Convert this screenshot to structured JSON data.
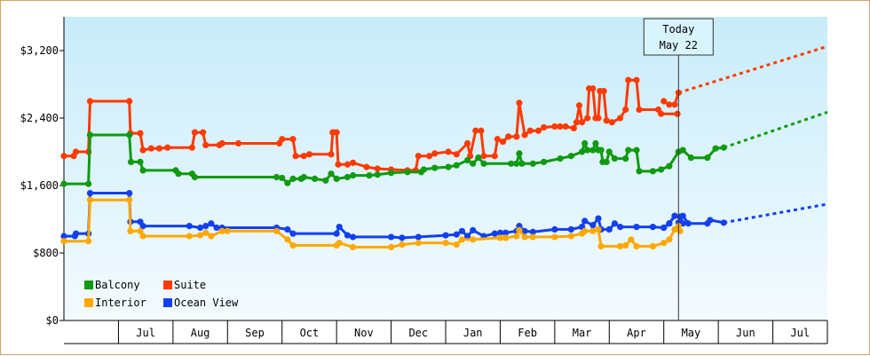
{
  "chart_data": {
    "type": "line",
    "title": "",
    "xlabel": "",
    "ylabel": "",
    "y_axis": {
      "min": 0,
      "max": 3600,
      "ticks": [
        0,
        800,
        1600,
        2400,
        3200
      ],
      "tick_labels": [
        "$0",
        "$800",
        "$1,600",
        "$2,400",
        "$3,200"
      ]
    },
    "x_axis": {
      "min": 0,
      "max": 14,
      "ticks": [
        1,
        2,
        3,
        4,
        5,
        6,
        7,
        8,
        9,
        10,
        11,
        12,
        13,
        14
      ],
      "month_labels": [
        "Jul",
        "Aug",
        "Sep",
        "Oct",
        "Nov",
        "Dec",
        "Jan",
        "Feb",
        "Mar",
        "Apr",
        "May",
        "Jun",
        "Jul"
      ]
    },
    "today": {
      "x": 11.27,
      "line1": "Today",
      "line2": "May 22"
    },
    "colors": {
      "Balcony": "#109a10",
      "Suite": "#ff3a00",
      "Interior": "#ffa800",
      "Ocean View": "#1240f0"
    },
    "legend": [
      "Balcony",
      "Suite",
      "Interior",
      "Ocean View"
    ],
    "series": [
      {
        "name": "Suite",
        "points": [
          [
            0.0,
            1950
          ],
          [
            0.18,
            1950
          ],
          [
            0.22,
            2000
          ],
          [
            0.45,
            2000
          ],
          [
            0.48,
            2600
          ],
          [
            1.2,
            2600
          ],
          [
            1.22,
            2220
          ],
          [
            1.4,
            2220
          ],
          [
            1.45,
            2020
          ],
          [
            1.6,
            2040
          ],
          [
            1.75,
            2040
          ],
          [
            1.9,
            2050
          ],
          [
            2.35,
            2050
          ],
          [
            2.4,
            2230
          ],
          [
            2.55,
            2230
          ],
          [
            2.6,
            2080
          ],
          [
            2.85,
            2080
          ],
          [
            2.9,
            2100
          ],
          [
            3.2,
            2100
          ],
          [
            3.95,
            2100
          ],
          [
            4.0,
            2150
          ],
          [
            4.2,
            2150
          ],
          [
            4.25,
            1950
          ],
          [
            4.4,
            1950
          ],
          [
            4.5,
            1970
          ],
          [
            4.9,
            1970
          ],
          [
            4.93,
            2230
          ],
          [
            5.0,
            2230
          ],
          [
            5.03,
            1850
          ],
          [
            5.2,
            1850
          ],
          [
            5.3,
            1870
          ],
          [
            5.55,
            1820
          ],
          [
            5.75,
            1800
          ],
          [
            6.0,
            1790
          ],
          [
            6.3,
            1780
          ],
          [
            6.45,
            1780
          ],
          [
            6.5,
            1950
          ],
          [
            6.7,
            1950
          ],
          [
            6.8,
            1980
          ],
          [
            7.05,
            2000
          ],
          [
            7.2,
            1970
          ],
          [
            7.4,
            2100
          ],
          [
            7.45,
            1950
          ],
          [
            7.55,
            2250
          ],
          [
            7.65,
            2250
          ],
          [
            7.7,
            1950
          ],
          [
            7.9,
            1950
          ],
          [
            7.95,
            2150
          ],
          [
            8.05,
            2120
          ],
          [
            8.15,
            2180
          ],
          [
            8.3,
            2180
          ],
          [
            8.35,
            2580
          ],
          [
            8.45,
            2200
          ],
          [
            8.55,
            2250
          ],
          [
            8.7,
            2250
          ],
          [
            8.8,
            2290
          ],
          [
            9.0,
            2300
          ],
          [
            9.1,
            2300
          ],
          [
            9.2,
            2300
          ],
          [
            9.35,
            2280
          ],
          [
            9.4,
            2350
          ],
          [
            9.45,
            2550
          ],
          [
            9.5,
            2350
          ],
          [
            9.6,
            2400
          ],
          [
            9.63,
            2750
          ],
          [
            9.7,
            2750
          ],
          [
            9.75,
            2400
          ],
          [
            9.8,
            2400
          ],
          [
            9.83,
            2720
          ],
          [
            9.9,
            2720
          ],
          [
            9.95,
            2370
          ],
          [
            10.05,
            2350
          ],
          [
            10.2,
            2400
          ],
          [
            10.3,
            2500
          ],
          [
            10.35,
            2850
          ],
          [
            10.5,
            2850
          ],
          [
            10.55,
            2500
          ],
          [
            10.9,
            2500
          ],
          [
            10.95,
            2450
          ],
          [
            11.25,
            2450
          ]
        ],
        "gaps_after": [
          79
        ],
        "tail": [
          [
            11.0,
            2600
          ],
          [
            11.1,
            2560
          ],
          [
            11.2,
            2560
          ],
          [
            11.27,
            2700
          ]
        ],
        "projection": [
          [
            11.27,
            2700
          ],
          [
            14.0,
            3250
          ]
        ]
      },
      {
        "name": "Balcony",
        "points": [
          [
            0.0,
            1620
          ],
          [
            0.45,
            1620
          ],
          [
            0.48,
            2200
          ],
          [
            1.2,
            2200
          ],
          [
            1.23,
            1880
          ],
          [
            1.4,
            1880
          ],
          [
            1.45,
            1780
          ],
          [
            2.05,
            1780
          ],
          [
            2.1,
            1740
          ],
          [
            2.35,
            1740
          ],
          [
            2.4,
            1700
          ],
          [
            3.9,
            1700
          ],
          [
            4.0,
            1690
          ],
          [
            4.1,
            1630
          ],
          [
            4.2,
            1680
          ],
          [
            4.35,
            1680
          ],
          [
            4.4,
            1700
          ],
          [
            4.6,
            1680
          ],
          [
            4.8,
            1660
          ],
          [
            4.9,
            1740
          ],
          [
            5.0,
            1680
          ],
          [
            5.2,
            1700
          ],
          [
            5.3,
            1720
          ],
          [
            5.6,
            1720
          ],
          [
            5.75,
            1730
          ],
          [
            6.0,
            1750
          ],
          [
            6.3,
            1760
          ],
          [
            6.55,
            1760
          ],
          [
            6.6,
            1790
          ],
          [
            6.8,
            1810
          ],
          [
            7.05,
            1820
          ],
          [
            7.2,
            1840
          ],
          [
            7.4,
            1900
          ],
          [
            7.5,
            1860
          ],
          [
            7.6,
            1930
          ],
          [
            7.7,
            1860
          ],
          [
            8.2,
            1860
          ],
          [
            8.3,
            1860
          ],
          [
            8.35,
            1980
          ],
          [
            8.4,
            1860
          ],
          [
            8.6,
            1860
          ],
          [
            8.8,
            1880
          ],
          [
            9.1,
            1920
          ],
          [
            9.3,
            1950
          ],
          [
            9.5,
            2000
          ],
          [
            9.55,
            2100
          ],
          [
            9.6,
            2020
          ],
          [
            9.7,
            2020
          ],
          [
            9.75,
            2100
          ],
          [
            9.8,
            2020
          ],
          [
            9.85,
            2020
          ],
          [
            9.88,
            1880
          ],
          [
            9.95,
            1880
          ],
          [
            10.0,
            2000
          ],
          [
            10.1,
            1920
          ],
          [
            10.3,
            1920
          ],
          [
            10.35,
            2020
          ],
          [
            10.5,
            2020
          ],
          [
            10.55,
            1770
          ],
          [
            10.8,
            1770
          ],
          [
            10.95,
            1790
          ],
          [
            11.1,
            1830
          ],
          [
            11.27,
            2000
          ]
        ],
        "gaps_after": [],
        "tail": [
          [
            11.27,
            2000
          ],
          [
            11.35,
            2020
          ],
          [
            11.5,
            1930
          ],
          [
            11.8,
            1930
          ],
          [
            11.95,
            2040
          ],
          [
            12.1,
            2050
          ]
        ],
        "projection": [
          [
            12.1,
            2050
          ],
          [
            14.0,
            2470
          ]
        ]
      },
      {
        "name": "Ocean View",
        "points": [
          [
            0.0,
            1000
          ],
          [
            0.2,
            1000
          ],
          [
            0.22,
            1030
          ],
          [
            0.45,
            1030
          ],
          [
            0.48,
            1510
          ],
          [
            1.2,
            1510
          ],
          [
            1.22,
            1170
          ],
          [
            1.4,
            1170
          ],
          [
            1.45,
            1120
          ],
          [
            2.3,
            1120
          ],
          [
            2.5,
            1100
          ],
          [
            2.6,
            1120
          ],
          [
            2.7,
            1150
          ],
          [
            2.8,
            1100
          ],
          [
            2.9,
            1100
          ],
          [
            3.9,
            1100
          ],
          [
            4.1,
            1080
          ],
          [
            4.2,
            1030
          ],
          [
            5.0,
            1030
          ],
          [
            5.05,
            1110
          ],
          [
            5.2,
            1010
          ],
          [
            5.3,
            990
          ],
          [
            6.0,
            990
          ],
          [
            6.2,
            980
          ],
          [
            6.5,
            990
          ],
          [
            7.0,
            1010
          ],
          [
            7.2,
            1020
          ],
          [
            7.3,
            1060
          ],
          [
            7.4,
            1000
          ],
          [
            7.5,
            1070
          ],
          [
            7.7,
            1000
          ],
          [
            7.9,
            1030
          ],
          [
            8.0,
            1040
          ],
          [
            8.1,
            1040
          ],
          [
            8.3,
            1060
          ],
          [
            8.35,
            1120
          ],
          [
            8.45,
            1060
          ],
          [
            8.6,
            1050
          ],
          [
            9.0,
            1080
          ],
          [
            9.3,
            1080
          ],
          [
            9.5,
            1110
          ],
          [
            9.55,
            1180
          ],
          [
            9.7,
            1130
          ],
          [
            9.8,
            1210
          ],
          [
            9.85,
            1080
          ],
          [
            10.0,
            1080
          ],
          [
            10.1,
            1150
          ],
          [
            10.2,
            1110
          ],
          [
            10.5,
            1110
          ],
          [
            10.8,
            1110
          ],
          [
            11.0,
            1100
          ],
          [
            11.1,
            1150
          ],
          [
            11.2,
            1240
          ],
          [
            11.3,
            1230
          ],
          [
            11.35,
            1150
          ],
          [
            11.27,
            1160
          ]
        ],
        "gaps_after": [],
        "tail": [
          [
            11.0,
            1100
          ],
          [
            11.1,
            1150
          ],
          [
            11.2,
            1240
          ],
          [
            11.35,
            1240
          ],
          [
            11.45,
            1150
          ],
          [
            11.8,
            1150
          ],
          [
            11.85,
            1190
          ],
          [
            12.1,
            1160
          ]
        ],
        "projection": [
          [
            12.1,
            1160
          ],
          [
            14.0,
            1380
          ]
        ]
      },
      {
        "name": "Interior",
        "points": [
          [
            0.0,
            940
          ],
          [
            0.45,
            940
          ],
          [
            0.48,
            1430
          ],
          [
            1.2,
            1430
          ],
          [
            1.22,
            1060
          ],
          [
            1.4,
            1060
          ],
          [
            1.45,
            1000
          ],
          [
            2.3,
            1000
          ],
          [
            2.5,
            1010
          ],
          [
            2.6,
            1040
          ],
          [
            2.7,
            1000
          ],
          [
            2.9,
            1060
          ],
          [
            3.0,
            1060
          ],
          [
            3.9,
            1060
          ],
          [
            4.1,
            960
          ],
          [
            4.2,
            890
          ],
          [
            5.0,
            890
          ],
          [
            5.05,
            920
          ],
          [
            5.3,
            870
          ],
          [
            6.0,
            870
          ],
          [
            6.2,
            900
          ],
          [
            6.5,
            920
          ],
          [
            7.0,
            920
          ],
          [
            7.2,
            900
          ],
          [
            7.3,
            960
          ],
          [
            7.5,
            960
          ],
          [
            8.0,
            980
          ],
          [
            8.1,
            980
          ],
          [
            8.3,
            1000
          ],
          [
            8.35,
            1070
          ],
          [
            8.45,
            990
          ],
          [
            8.6,
            990
          ],
          [
            9.0,
            990
          ],
          [
            9.3,
            1000
          ],
          [
            9.5,
            1030
          ],
          [
            9.55,
            1060
          ],
          [
            9.7,
            1060
          ],
          [
            9.8,
            1080
          ],
          [
            9.85,
            880
          ],
          [
            10.2,
            880
          ],
          [
            10.3,
            890
          ],
          [
            10.4,
            960
          ],
          [
            10.5,
            880
          ],
          [
            10.8,
            880
          ],
          [
            11.0,
            920
          ],
          [
            11.1,
            960
          ],
          [
            11.2,
            1080
          ],
          [
            11.3,
            1060
          ],
          [
            11.27,
            1120
          ]
        ],
        "gaps_after": [],
        "tail": [],
        "projection": []
      }
    ]
  }
}
